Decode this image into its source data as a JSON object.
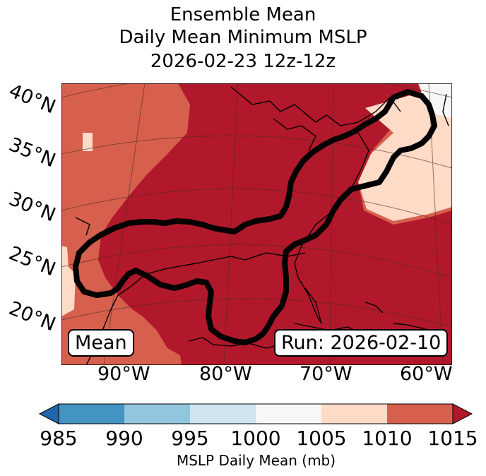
{
  "title": {
    "line1": "Ensemble Mean",
    "line2": "Daily Mean Minimum MSLP",
    "line3": "2026-02-23 12z-12z"
  },
  "map": {
    "lat_labels": [
      "40°N",
      "35°N",
      "30°N",
      "25°N",
      "20°N"
    ],
    "lon_labels": [
      "90°W",
      "80°W",
      "70°W",
      "60°W"
    ],
    "mean_label": "Mean",
    "run_label": "Run: 2026-02-10",
    "colors": {
      "lt1010": "#d6604d",
      "lt1015": "#b2182b",
      "lt1005": "#fddbc7",
      "lt1000": "#f7f7f7",
      "contour": "#000000"
    }
  },
  "colorbar": {
    "label": "MSLP Daily Mean (mb)",
    "ticks": [
      "985",
      "990",
      "995",
      "1000",
      "1005",
      "1010",
      "1015"
    ],
    "colors": [
      "#2166ac",
      "#4393c3",
      "#92c5de",
      "#d1e5f0",
      "#f7f7f7",
      "#fddbc7",
      "#d6604d",
      "#b2182b"
    ]
  }
}
